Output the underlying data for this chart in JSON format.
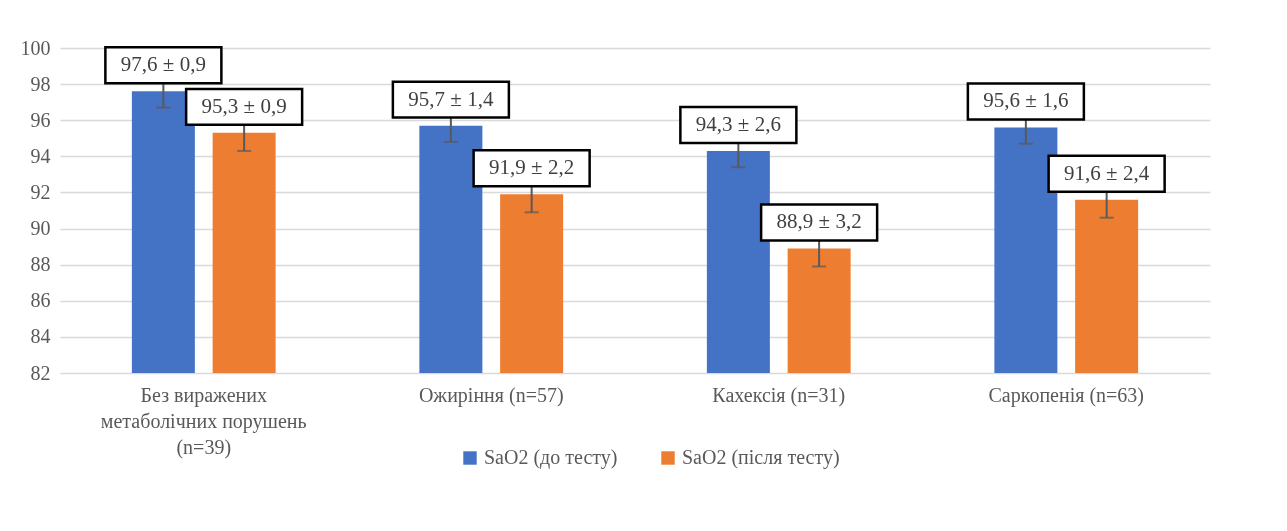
{
  "chart_data": {
    "type": "bar",
    "categories": [
      "Без виражених метаболічних порушень (n=39)",
      "Ожиріння  (n=57)",
      "Кахексія (n=31)",
      "Саркопенія (n=63)"
    ],
    "series": [
      {
        "name": "SaO2 (до тесту)",
        "color": "#4472c4",
        "values": [
          97.6,
          95.7,
          94.3,
          95.6
        ],
        "errors": [
          0.9,
          0.9,
          0.9,
          0.9
        ],
        "value_labels": [
          "97,6 ± 0,9",
          "95,7 ± 1,4",
          "94,3 ± 2,6",
          "95,6 ± 1,6"
        ]
      },
      {
        "name": "SaO2 (після тесту)",
        "color": "#ed7d31",
        "values": [
          95.3,
          91.9,
          88.9,
          91.6
        ],
        "errors": [
          1.0,
          1.0,
          1.0,
          1.0
        ],
        "value_labels": [
          "95,3 ± 0,9",
          "91,9 ± 2,2",
          "88,9 ± 3,2",
          "91,6 ± 2,4"
        ]
      }
    ],
    "ylim": [
      82,
      100
    ],
    "yticks": [
      82,
      84,
      86,
      88,
      90,
      92,
      94,
      96,
      98,
      100
    ],
    "grid": "y",
    "legend": "bottom"
  }
}
